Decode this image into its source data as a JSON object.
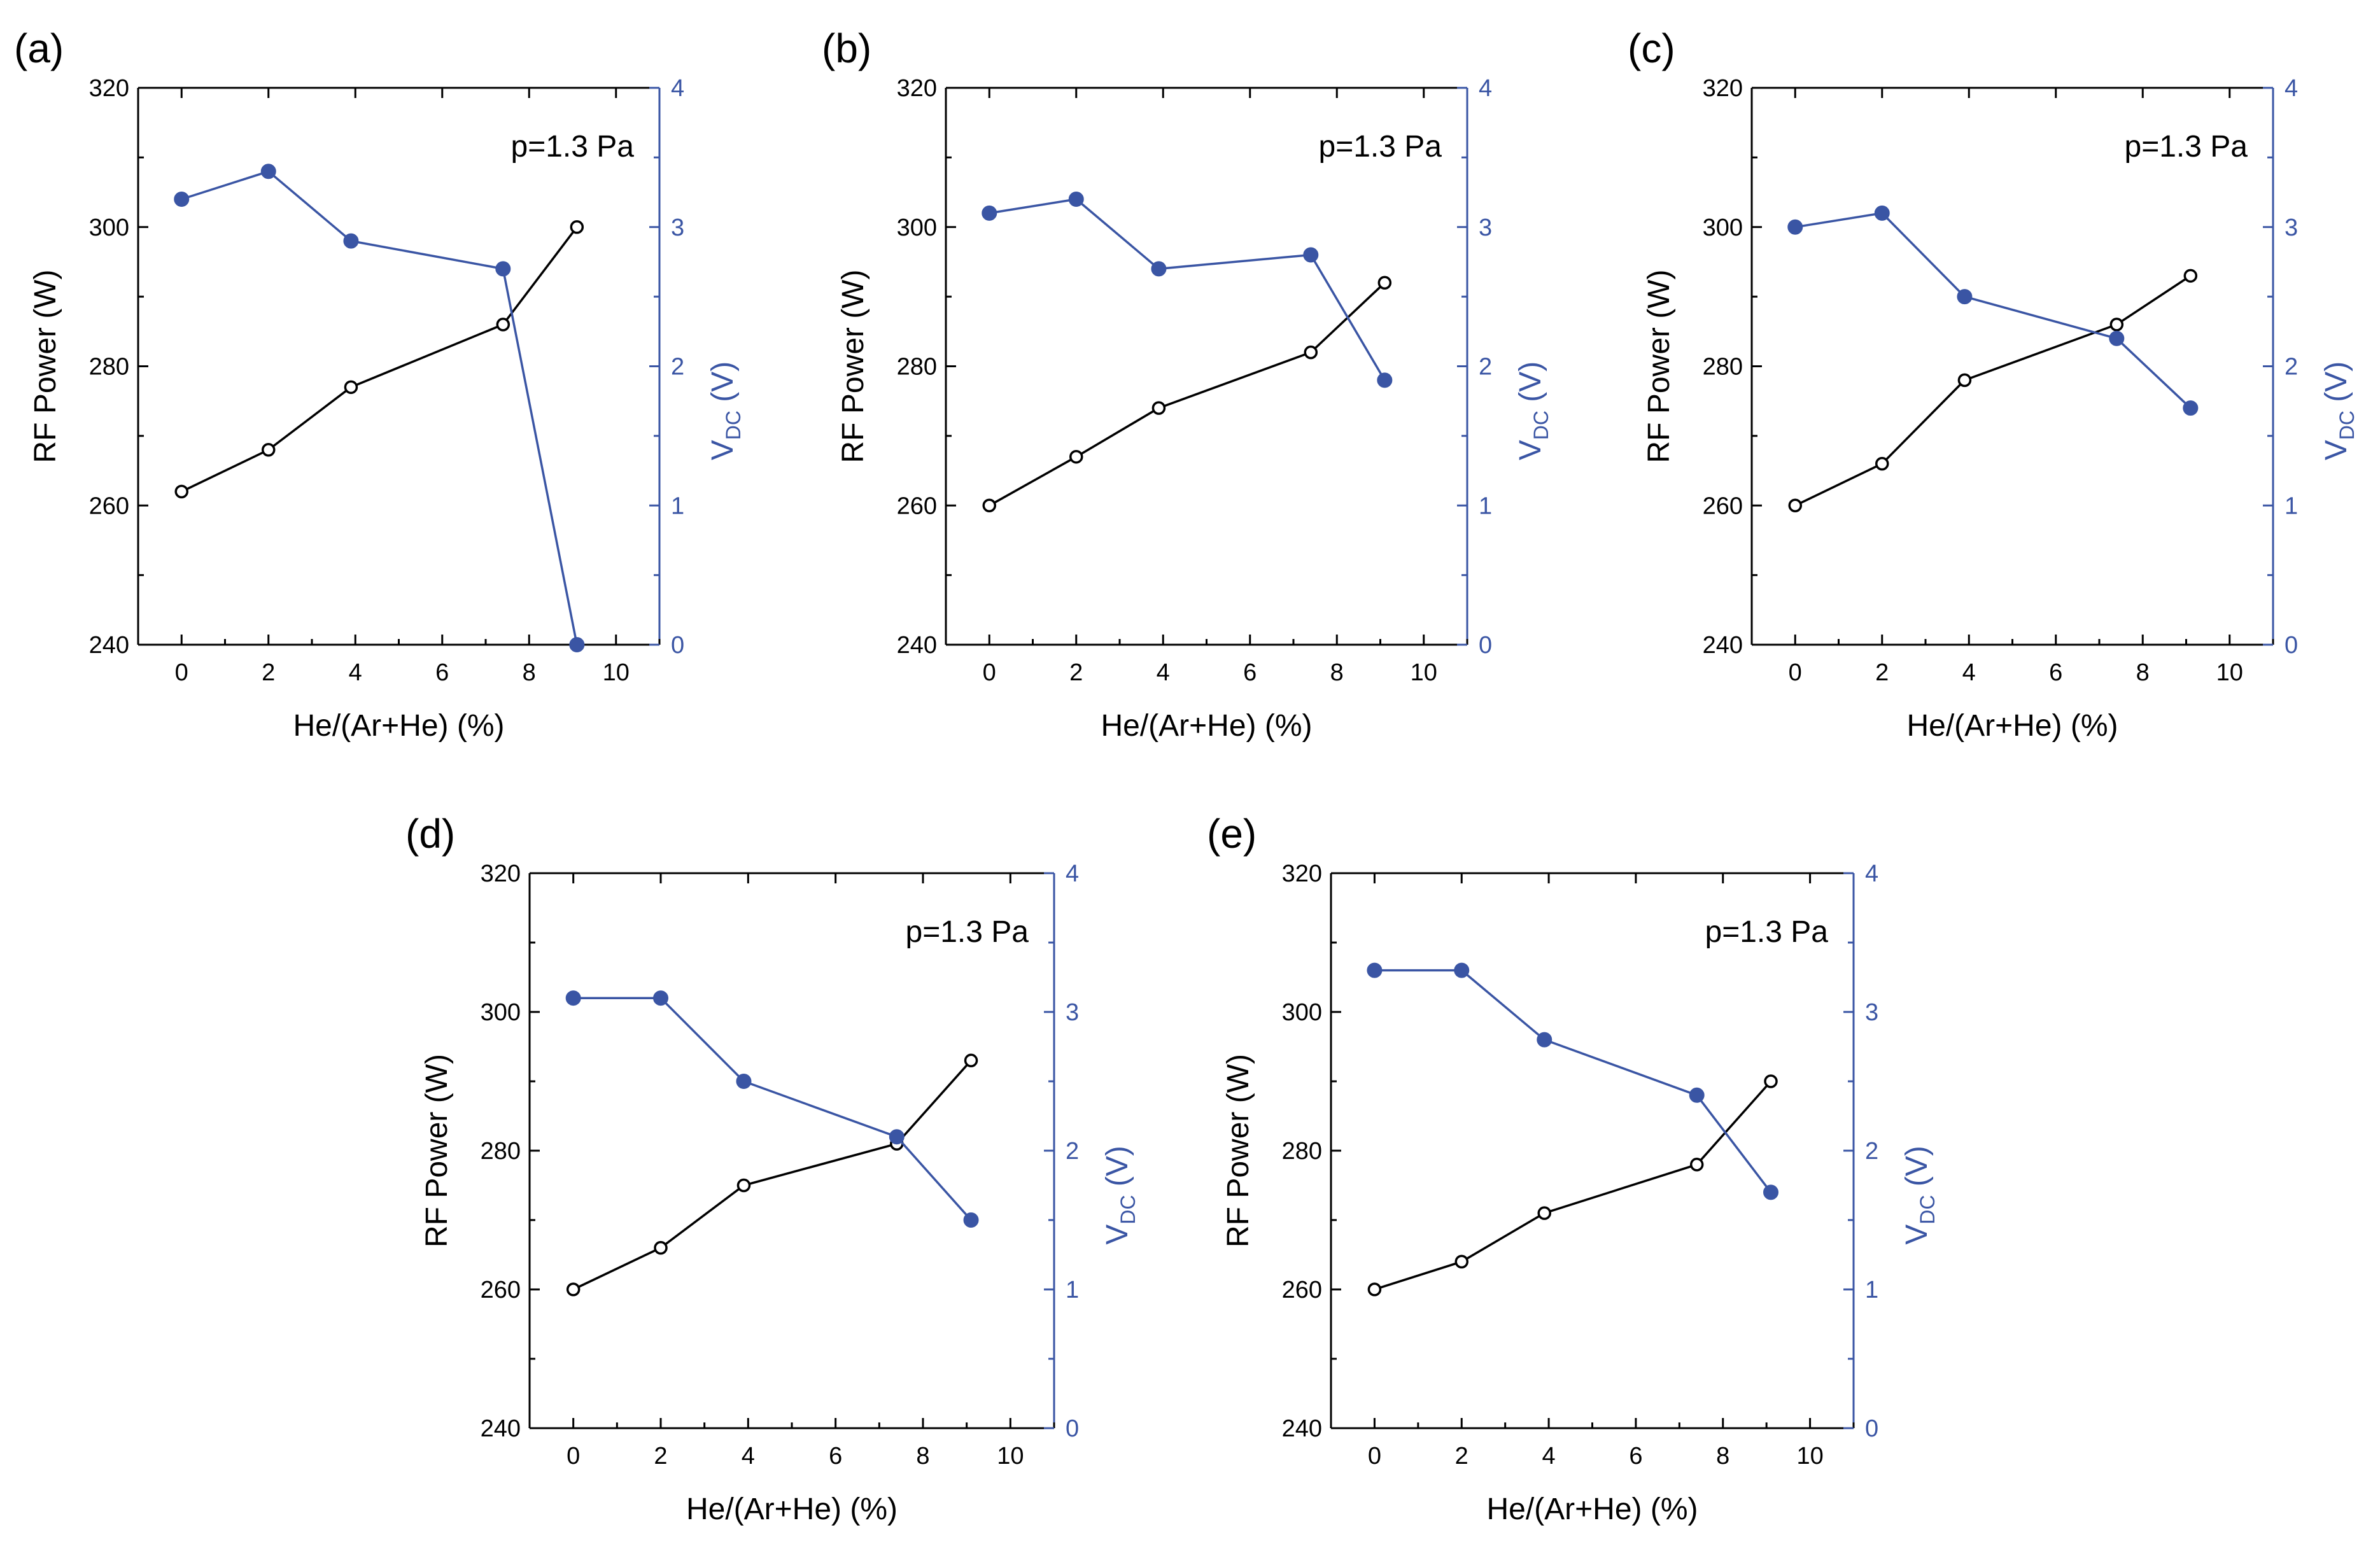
{
  "colors": {
    "left": "#000000",
    "right": "#3a55a4"
  },
  "chart_data": [
    {
      "panel": "(a)",
      "type": "line",
      "annotation": "p=1.3 Pa",
      "xlabel": "He/(Ar+He) (%)",
      "ylabel": "RF Power (W)",
      "y2label_main": "V",
      "y2label_sub": "DC",
      "y2label_tail": " (V)",
      "xlim": [
        -1,
        11
      ],
      "ylim": [
        240,
        320
      ],
      "y2lim": [
        0,
        4
      ],
      "xticks": [
        "0",
        "2",
        "4",
        "6",
        "8",
        "10"
      ],
      "yticks": [
        "240",
        "260",
        "280",
        "300",
        "320"
      ],
      "y2ticks": [
        "0",
        "1",
        "2",
        "3",
        "4"
      ],
      "series": [
        {
          "axis": "left",
          "marker": "open-circle",
          "x": [
            0,
            2,
            3.9,
            7.4,
            9.1
          ],
          "y": [
            262,
            268,
            277,
            286,
            300
          ]
        },
        {
          "axis": "right",
          "marker": "filled-circle",
          "x": [
            0,
            2,
            3.9,
            7.4,
            9.1
          ],
          "y": [
            3.2,
            3.4,
            2.9,
            2.7,
            0
          ]
        }
      ]
    },
    {
      "panel": "(b)",
      "type": "line",
      "annotation": "p=1.3 Pa",
      "xlabel": "He/(Ar+He) (%)",
      "ylabel": "RF Power (W)",
      "y2label_main": "V",
      "y2label_sub": "DC",
      "y2label_tail": " (V)",
      "xlim": [
        -1,
        11
      ],
      "ylim": [
        240,
        320
      ],
      "y2lim": [
        0,
        4
      ],
      "xticks": [
        "0",
        "2",
        "4",
        "6",
        "8",
        "10"
      ],
      "yticks": [
        "240",
        "260",
        "280",
        "300",
        "320"
      ],
      "y2ticks": [
        "0",
        "1",
        "2",
        "3",
        "4"
      ],
      "series": [
        {
          "axis": "left",
          "marker": "open-circle",
          "x": [
            0,
            2,
            3.9,
            7.4,
            9.1
          ],
          "y": [
            260,
            267,
            274,
            282,
            292
          ]
        },
        {
          "axis": "right",
          "marker": "filled-circle",
          "x": [
            0,
            2,
            3.9,
            7.4,
            9.1
          ],
          "y": [
            3.1,
            3.2,
            2.7,
            2.8,
            1.9
          ]
        }
      ]
    },
    {
      "panel": "(c)",
      "type": "line",
      "annotation": "p=1.3 Pa",
      "xlabel": "He/(Ar+He) (%)",
      "ylabel": "RF Power (W)",
      "y2label_main": "V",
      "y2label_sub": "DC",
      "y2label_tail": " (V)",
      "xlim": [
        -1,
        11
      ],
      "ylim": [
        240,
        320
      ],
      "y2lim": [
        0,
        4
      ],
      "xticks": [
        "0",
        "2",
        "4",
        "6",
        "8",
        "10"
      ],
      "yticks": [
        "240",
        "260",
        "280",
        "300",
        "320"
      ],
      "y2ticks": [
        "0",
        "1",
        "2",
        "3",
        "4"
      ],
      "series": [
        {
          "axis": "left",
          "marker": "open-circle",
          "x": [
            0,
            2,
            3.9,
            7.4,
            9.1
          ],
          "y": [
            260,
            266,
            278,
            286,
            293
          ]
        },
        {
          "axis": "right",
          "marker": "filled-circle",
          "x": [
            0,
            2,
            3.9,
            7.4,
            9.1
          ],
          "y": [
            3.0,
            3.1,
            2.5,
            2.2,
            1.7
          ]
        }
      ]
    },
    {
      "panel": "(d)",
      "type": "line",
      "annotation": "p=1.3 Pa",
      "xlabel": "He/(Ar+He) (%)",
      "ylabel": "RF Power (W)",
      "y2label_main": "V",
      "y2label_sub": "DC",
      "y2label_tail": " (V)",
      "xlim": [
        -1,
        11
      ],
      "ylim": [
        240,
        320
      ],
      "y2lim": [
        0,
        4
      ],
      "xticks": [
        "0",
        "2",
        "4",
        "6",
        "8",
        "10"
      ],
      "yticks": [
        "240",
        "260",
        "280",
        "300",
        "320"
      ],
      "y2ticks": [
        "0",
        "1",
        "2",
        "3",
        "4"
      ],
      "series": [
        {
          "axis": "left",
          "marker": "open-circle",
          "x": [
            0,
            2,
            3.9,
            7.4,
            9.1
          ],
          "y": [
            260,
            266,
            275,
            281,
            293
          ]
        },
        {
          "axis": "right",
          "marker": "filled-circle",
          "x": [
            0,
            2,
            3.9,
            7.4,
            9.1
          ],
          "y": [
            3.1,
            3.1,
            2.5,
            2.1,
            1.5
          ]
        }
      ]
    },
    {
      "panel": "(e)",
      "type": "line",
      "annotation": "p=1.3 Pa",
      "xlabel": "He/(Ar+He) (%)",
      "ylabel": "RF Power (W)",
      "y2label_main": "V",
      "y2label_sub": "DC",
      "y2label_tail": " (V)",
      "xlim": [
        -1,
        11
      ],
      "ylim": [
        240,
        320
      ],
      "y2lim": [
        0,
        4
      ],
      "xticks": [
        "0",
        "2",
        "4",
        "6",
        "8",
        "10"
      ],
      "yticks": [
        "240",
        "260",
        "280",
        "300",
        "320"
      ],
      "y2ticks": [
        "0",
        "1",
        "2",
        "3",
        "4"
      ],
      "series": [
        {
          "axis": "left",
          "marker": "open-circle",
          "x": [
            0,
            2,
            3.9,
            7.4,
            9.1
          ],
          "y": [
            260,
            264,
            271,
            278,
            290
          ]
        },
        {
          "axis": "right",
          "marker": "filled-circle",
          "x": [
            0,
            2,
            3.9,
            7.4,
            9.1
          ],
          "y": [
            3.3,
            3.3,
            2.8,
            2.4,
            1.7
          ]
        }
      ]
    }
  ]
}
